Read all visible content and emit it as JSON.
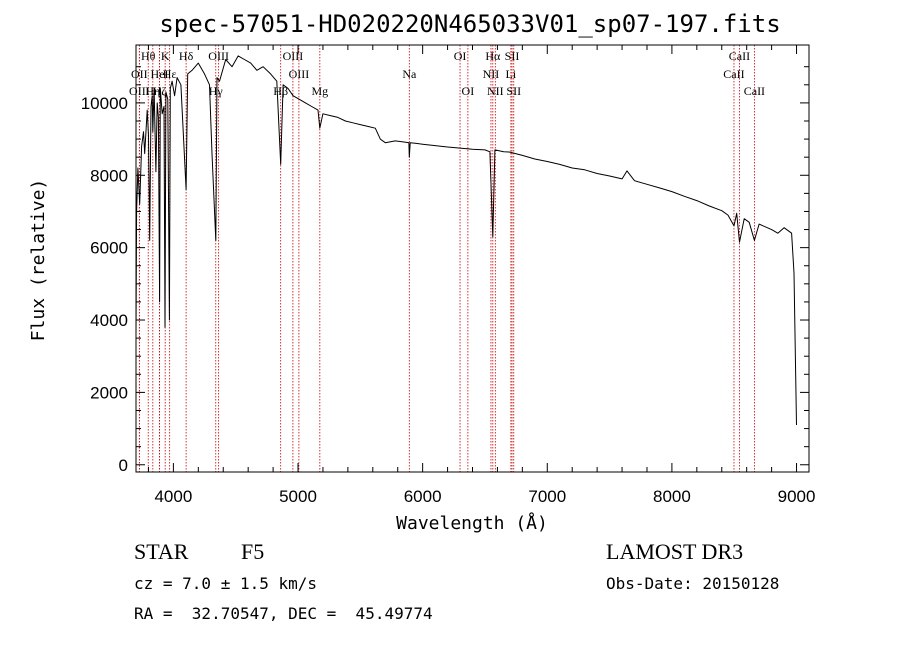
{
  "chart_data": {
    "type": "line",
    "title": "spec-57051-HD020220N465033V01_sp07-197.fits",
    "xlabel": "Wavelength (Å)",
    "ylabel": "Flux (relative)",
    "xlim": [
      3700,
      9100
    ],
    "ylim": [
      -200,
      11600
    ],
    "xticks": [
      4000,
      5000,
      6000,
      7000,
      8000,
      9000
    ],
    "yticks": [
      0,
      2000,
      4000,
      6000,
      8000,
      10000
    ],
    "series": [
      {
        "name": "spectrum",
        "x": [
          3700,
          3705,
          3715,
          3730,
          3745,
          3760,
          3770,
          3790,
          3800,
          3810,
          3820,
          3830,
          3835,
          3845,
          3860,
          3870,
          3880,
          3889,
          3895,
          3910,
          3925,
          3933,
          3940,
          3955,
          3968,
          3975,
          3990,
          4010,
          4030,
          4060,
          4102,
          4115,
          4150,
          4200,
          4250,
          4290,
          4300,
          4310,
          4340,
          4350,
          4370,
          4420,
          4470,
          4520,
          4570,
          4620,
          4670,
          4720,
          4780,
          4830,
          4861,
          4880,
          4920,
          4960,
          5010,
          5060,
          5110,
          5160,
          5175,
          5200,
          5260,
          5320,
          5380,
          5440,
          5500,
          5560,
          5620,
          5660,
          5700,
          5780,
          5850,
          5890,
          5893,
          5900,
          5950,
          6000,
          6100,
          6200,
          6300,
          6400,
          6500,
          6540,
          6563,
          6580,
          6650,
          6700,
          6800,
          6900,
          7000,
          7100,
          7200,
          7300,
          7400,
          7500,
          7600,
          7640,
          7700,
          7800,
          7900,
          8000,
          8100,
          8200,
          8300,
          8400,
          8450,
          8498,
          8520,
          8542,
          8580,
          8620,
          8662,
          8700,
          8800,
          8850,
          8900,
          8960,
          8980,
          9000
        ],
        "y": [
          3600,
          7000,
          8200,
          7200,
          8800,
          9200,
          8600,
          9800,
          9100,
          6200,
          9900,
          10200,
          9200,
          10400,
          8100,
          10000,
          9600,
          4500,
          10400,
          9700,
          9900,
          3800,
          10300,
          10100,
          4000,
          10400,
          10600,
          10200,
          10700,
          10500,
          7600,
          10800,
          10900,
          11100,
          10800,
          10500,
          9500,
          8600,
          6200,
          10700,
          10600,
          11200,
          11000,
          11300,
          11200,
          11100,
          10900,
          11000,
          10800,
          10600,
          8300,
          10500,
          10400,
          10200,
          10100,
          10000,
          9900,
          9800,
          9300,
          9700,
          9650,
          9600,
          9500,
          9450,
          9400,
          9350,
          9300,
          9000,
          8900,
          8950,
          8920,
          8900,
          8500,
          8900,
          8880,
          8860,
          8820,
          8780,
          8750,
          8720,
          8700,
          8650,
          6300,
          8700,
          8650,
          8640,
          8550,
          8450,
          8380,
          8300,
          8200,
          8150,
          8050,
          7980,
          7900,
          8120,
          7850,
          7750,
          7650,
          7550,
          7420,
          7300,
          7150,
          7020,
          6900,
          6600,
          6950,
          6150,
          6800,
          6700,
          6200,
          6650,
          6500,
          6400,
          6550,
          6400,
          5300,
          1100
        ]
      }
    ],
    "line_markers": [
      {
        "label": "Hθ",
        "x": 3798,
        "row": 0
      },
      {
        "label": "OII",
        "x": 3727,
        "row": 1
      },
      {
        "label": "OIII",
        "x": 3727,
        "row": 2
      },
      {
        "label": "K",
        "x": 3934,
        "row": 0
      },
      {
        "label": "HeI",
        "x": 3889,
        "row": 1
      },
      {
        "label": "Hη",
        "x": 3835,
        "row": 2
      },
      {
        "label": "Hε",
        "x": 3970,
        "row": 1
      },
      {
        "label": "Hζ",
        "x": 3889,
        "row": 2
      },
      {
        "label": "Hδ",
        "x": 4102,
        "row": 0
      },
      {
        "label": "Hγ",
        "x": 4340,
        "row": 2
      },
      {
        "label": "OIII",
        "x": 4363,
        "row": 0
      },
      {
        "label": "OIII",
        "x": 4959,
        "row": 0
      },
      {
        "label": "OIII",
        "x": 5007,
        "row": 1
      },
      {
        "label": "Hβ",
        "x": 4861,
        "row": 2
      },
      {
        "label": "Mg",
        "x": 5175,
        "row": 2
      },
      {
        "label": "Na",
        "x": 5893,
        "row": 1
      },
      {
        "label": "OI",
        "x": 6300,
        "row": 0
      },
      {
        "label": "OI",
        "x": 6363,
        "row": 2
      },
      {
        "label": "Hα",
        "x": 6563,
        "row": 0
      },
      {
        "label": "NII",
        "x": 6548,
        "row": 1
      },
      {
        "label": "NII",
        "x": 6583,
        "row": 2
      },
      {
        "label": "SII",
        "x": 6717,
        "row": 0
      },
      {
        "label": "Li",
        "x": 6708,
        "row": 1
      },
      {
        "label": "SII",
        "x": 6731,
        "row": 2
      },
      {
        "label": "CaII",
        "x": 8542,
        "row": 0
      },
      {
        "label": "CaII",
        "x": 8498,
        "row": 1
      },
      {
        "label": "CaII",
        "x": 8662,
        "row": 2
      }
    ]
  },
  "footer": {
    "object_class": "STAR",
    "subclass": "F5",
    "survey": "LAMOST DR3",
    "redshift": "cz = 7.0 ± 1.5 km/s",
    "obs_date": "Obs-Date: 20150128",
    "coords": "RA =  32.70547, DEC =  45.49774"
  },
  "colors": {
    "spectrum": "#000000",
    "markers": "#cc0000",
    "axes": "#000000"
  }
}
